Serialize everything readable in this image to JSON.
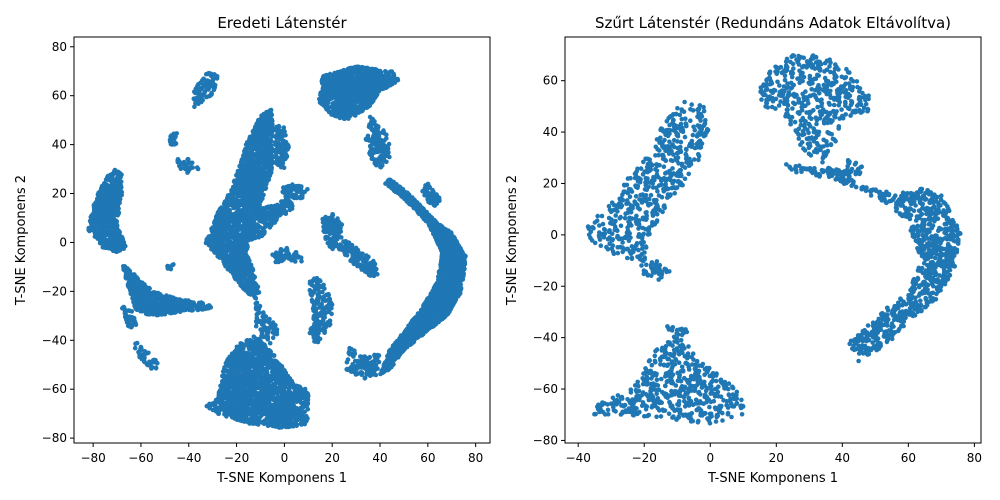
{
  "marker_color": "#1f77b4",
  "chart_data": [
    {
      "type": "scatter",
      "title": "Eredeti Látenstér",
      "xlabel": "T-SNE Komponens 1",
      "ylabel": "T-SNE Komponens 2",
      "xlim": [
        -88,
        86
      ],
      "ylim": [
        -82,
        84
      ],
      "xticks": [
        -80,
        -60,
        -40,
        -20,
        0,
        20,
        40,
        60,
        80
      ],
      "yticks": [
        -80,
        -60,
        -40,
        -20,
        0,
        20,
        40,
        60,
        80
      ],
      "grid": false,
      "clusters": [
        {
          "poly": [
            [
              -81,
              12
            ],
            [
              -78,
              20
            ],
            [
              -74,
              27
            ],
            [
              -71,
              30
            ],
            [
              -68,
              28
            ],
            [
              -68,
              18
            ],
            [
              -70,
              8
            ],
            [
              -66,
              -2
            ],
            [
              -70,
              -4
            ],
            [
              -76,
              -2
            ],
            [
              -82,
              5
            ]
          ],
          "n": 650
        },
        {
          "poly": [
            [
              -68,
              -8
            ],
            [
              -64,
              -12
            ],
            [
              -55,
              -20
            ],
            [
              -45,
              -23
            ],
            [
              -32,
              -25
            ],
            [
              -30,
              -27
            ],
            [
              -40,
              -28
            ],
            [
              -55,
              -30
            ],
            [
              -62,
              -28
            ],
            [
              -66,
              -16
            ]
          ],
          "n": 600
        },
        {
          "poly": [
            [
              -68,
              -26
            ],
            [
              -63,
              -28
            ],
            [
              -62,
              -34
            ],
            [
              -65,
              -36
            ],
            [
              -67,
              -31
            ]
          ],
          "n": 50
        },
        {
          "poly": [
            [
              -63,
              -40
            ],
            [
              -60,
              -42
            ],
            [
              -52,
              -50
            ],
            [
              -54,
              -53
            ],
            [
              -62,
              -46
            ]
          ],
          "n": 45
        },
        {
          "poly": [
            [
              -38,
              55
            ],
            [
              -30,
              60
            ],
            [
              -27,
              68
            ],
            [
              -32,
              70
            ],
            [
              -38,
              62
            ]
          ],
          "n": 90
        },
        {
          "poly": [
            [
              -48,
              44
            ],
            [
              -44,
              45
            ],
            [
              -45,
              40
            ],
            [
              -48,
              40
            ]
          ],
          "n": 20
        },
        {
          "poly": [
            [
              -46,
              34
            ],
            [
              -39,
              35
            ],
            [
              -36,
              30
            ],
            [
              -42,
              28
            ]
          ],
          "n": 35
        },
        {
          "poly": [
            [
              -33,
              0
            ],
            [
              -28,
              12
            ],
            [
              -22,
              22
            ],
            [
              -16,
              40
            ],
            [
              -10,
              52
            ],
            [
              -5,
              55
            ],
            [
              -5,
              30
            ],
            [
              -12,
              10
            ],
            [
              -16,
              -4
            ],
            [
              -12,
              -14
            ],
            [
              -10,
              -22
            ],
            [
              -12,
              -24
            ],
            [
              -18,
              -18
            ],
            [
              -26,
              -8
            ]
          ],
          "n": 1800
        },
        {
          "poly": [
            [
              -4,
              48
            ],
            [
              0,
              47
            ],
            [
              2,
              38
            ],
            [
              0,
              30
            ],
            [
              -4,
              32
            ]
          ],
          "n": 120
        },
        {
          "poly": [
            [
              -14,
              8
            ],
            [
              -10,
              14
            ],
            [
              -4,
              16
            ],
            [
              2,
              18
            ],
            [
              4,
              14
            ],
            [
              -4,
              8
            ],
            [
              -10,
              2
            ],
            [
              -14,
              0
            ]
          ],
          "n": 180
        },
        {
          "poly": [
            [
              -2,
              22
            ],
            [
              4,
              24
            ],
            [
              10,
              22
            ],
            [
              8,
              18
            ],
            [
              0,
              18
            ]
          ],
          "n": 60
        },
        {
          "poly": [
            [
              -6,
              -4
            ],
            [
              0,
              -2
            ],
            [
              6,
              -4
            ],
            [
              8,
              -8
            ],
            [
              2,
              -8
            ],
            [
              -4,
              -8
            ]
          ],
          "n": 50
        },
        {
          "poly": [
            [
              -12,
              -24
            ],
            [
              -6,
              -30
            ],
            [
              -2,
              -36
            ],
            [
              -6,
              -42
            ],
            [
              -12,
              -36
            ]
          ],
          "n": 80
        },
        {
          "poly": [
            [
              -28,
              -64
            ],
            [
              -25,
              -50
            ],
            [
              -20,
              -42
            ],
            [
              -12,
              -38
            ],
            [
              -4,
              -46
            ],
            [
              0,
              -52
            ],
            [
              4,
              -58
            ],
            [
              10,
              -60
            ],
            [
              10,
              -74
            ],
            [
              0,
              -76
            ],
            [
              -15,
              -74
            ],
            [
              -28,
              -70
            ],
            [
              -33,
              -67
            ]
          ],
          "n": 1700
        },
        {
          "poly": [
            [
              16,
              68
            ],
            [
              30,
              72
            ],
            [
              45,
              70
            ],
            [
              48,
              66
            ],
            [
              40,
              62
            ],
            [
              36,
              56
            ],
            [
              30,
              52
            ],
            [
              26,
              50
            ],
            [
              20,
              52
            ],
            [
              14,
              58
            ]
          ],
          "n": 1000
        },
        {
          "poly": [
            [
              36,
              52
            ],
            [
              40,
              48
            ],
            [
              44,
              42
            ],
            [
              44,
              34
            ],
            [
              40,
              30
            ],
            [
              36,
              34
            ],
            [
              34,
              42
            ]
          ],
          "n": 150
        },
        {
          "poly": [
            [
              44,
              26
            ],
            [
              52,
              20
            ],
            [
              58,
              14
            ],
            [
              64,
              8
            ],
            [
              70,
              4
            ],
            [
              76,
              -6
            ],
            [
              74,
              -20
            ],
            [
              68,
              -30
            ],
            [
              60,
              -36
            ],
            [
              50,
              -44
            ],
            [
              44,
              -52
            ],
            [
              40,
              -54
            ],
            [
              44,
              -44
            ],
            [
              52,
              -34
            ],
            [
              58,
              -26
            ],
            [
              64,
              -16
            ],
            [
              66,
              -4
            ],
            [
              60,
              8
            ],
            [
              50,
              18
            ],
            [
              42,
              24
            ]
          ],
          "n": 2600
        },
        {
          "poly": [
            [
              56,
              22
            ],
            [
              60,
              24
            ],
            [
              66,
              18
            ],
            [
              62,
              14
            ]
          ],
          "n": 60
        },
        {
          "poly": [
            [
              16,
              10
            ],
            [
              20,
              12
            ],
            [
              24,
              8
            ],
            [
              24,
              2
            ],
            [
              20,
              -4
            ],
            [
              16,
              4
            ]
          ],
          "n": 120
        },
        {
          "poly": [
            [
              24,
              2
            ],
            [
              30,
              -2
            ],
            [
              38,
              -8
            ],
            [
              40,
              -14
            ],
            [
              36,
              -14
            ],
            [
              28,
              -8
            ],
            [
              22,
              -2
            ]
          ],
          "n": 150
        },
        {
          "poly": [
            [
              10,
              -16
            ],
            [
              14,
              -14
            ],
            [
              20,
              -22
            ],
            [
              20,
              -32
            ],
            [
              14,
              -42
            ],
            [
              10,
              -38
            ],
            [
              12,
              -28
            ]
          ],
          "n": 170
        },
        {
          "poly": [
            [
              26,
              -42
            ],
            [
              32,
              -46
            ],
            [
              40,
              -46
            ],
            [
              40,
              -54
            ],
            [
              32,
              -56
            ],
            [
              26,
              -52
            ]
          ],
          "n": 110
        },
        {
          "poly": [
            [
              -50,
              -10
            ],
            [
              -48,
              -12
            ],
            [
              -45,
              -8
            ]
          ],
          "n": 8
        }
      ]
    },
    {
      "type": "scatter",
      "title": "Szűrt Látenstér (Redundáns Adatok Eltávolítva)",
      "xlabel": "T-SNE Komponens 1",
      "ylabel": "T-SNE Komponens 2",
      "xlim": [
        -44,
        82
      ],
      "ylim": [
        -81,
        77
      ],
      "xticks": [
        -40,
        -20,
        0,
        20,
        40,
        60,
        80
      ],
      "yticks": [
        -80,
        -60,
        -40,
        -20,
        0,
        20,
        40,
        60
      ],
      "grid": false,
      "clusters": [
        {
          "poly": [
            [
              -37,
              4
            ],
            [
              -30,
              12
            ],
            [
              -25,
              22
            ],
            [
              -18,
              32
            ],
            [
              -14,
              44
            ],
            [
              -8,
              52
            ],
            [
              -2,
              50
            ],
            [
              0,
              40
            ],
            [
              -3,
              30
            ],
            [
              -8,
              20
            ],
            [
              -14,
              10
            ],
            [
              -18,
              0
            ],
            [
              -20,
              -8
            ],
            [
              -24,
              -10
            ],
            [
              -32,
              -6
            ],
            [
              -38,
              0
            ]
          ],
          "n": 550
        },
        {
          "poly": [
            [
              -22,
              -8
            ],
            [
              -16,
              -10
            ],
            [
              -12,
              -14
            ],
            [
              -14,
              -18
            ],
            [
              -20,
              -16
            ]
          ],
          "n": 40
        },
        {
          "poly": [
            [
              -34,
              -66
            ],
            [
              -24,
              -60
            ],
            [
              -16,
              -44
            ],
            [
              -10,
              -38
            ],
            [
              -2,
              -50
            ],
            [
              6,
              -58
            ],
            [
              10,
              -64
            ],
            [
              10,
              -70
            ],
            [
              0,
              -74
            ],
            [
              -10,
              -72
            ],
            [
              -25,
              -70
            ],
            [
              -36,
              -70
            ]
          ],
          "n": 520
        },
        {
          "poly": [
            [
              -14,
              -36
            ],
            [
              -10,
              -34
            ],
            [
              -6,
              -38
            ],
            [
              -10,
              -42
            ]
          ],
          "n": 15
        },
        {
          "poly": [
            [
              16,
              62
            ],
            [
              24,
              70
            ],
            [
              34,
              70
            ],
            [
              42,
              64
            ],
            [
              48,
              56
            ],
            [
              48,
              48
            ],
            [
              40,
              44
            ],
            [
              38,
              36
            ],
            [
              34,
              28
            ],
            [
              28,
              32
            ],
            [
              22,
              48
            ],
            [
              16,
              50
            ],
            [
              14,
              56
            ]
          ],
          "n": 480
        },
        {
          "poly": [
            [
              42,
              30
            ],
            [
              46,
              28
            ],
            [
              46,
              22
            ],
            [
              40,
              24
            ]
          ],
          "n": 25
        },
        {
          "poly": [
            [
              22,
              28
            ],
            [
              32,
              26
            ],
            [
              40,
              26
            ],
            [
              44,
              20
            ],
            [
              56,
              16
            ],
            [
              64,
              18
            ],
            [
              70,
              16
            ],
            [
              76,
              0
            ],
            [
              74,
              -14
            ],
            [
              68,
              -26
            ],
            [
              60,
              -34
            ],
            [
              54,
              -42
            ],
            [
              44,
              -50
            ],
            [
              42,
              -42
            ],
            [
              50,
              -32
            ],
            [
              60,
              -22
            ],
            [
              64,
              -10
            ],
            [
              60,
              4
            ],
            [
              54,
              12
            ],
            [
              44,
              18
            ],
            [
              36,
              22
            ],
            [
              26,
              24
            ]
          ],
          "n": 950
        }
      ]
    }
  ]
}
